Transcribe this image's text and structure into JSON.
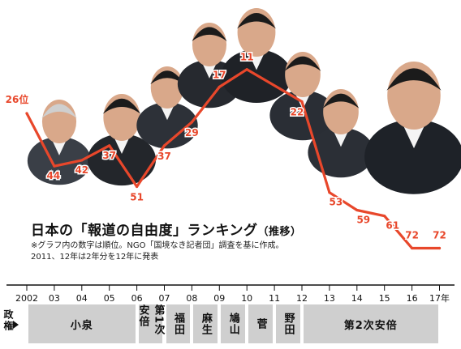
{
  "chart_data": {
    "type": "line",
    "title": "日本の「報道の自由度」ランキング",
    "subtitle": "（推移）",
    "notes": [
      "※グラフ内の数字は順位。NGO「国境なき記者団」調査を基に作成。",
      "2011、12年は2年分を12年に発表"
    ],
    "x": [
      "2002",
      "03",
      "04",
      "05",
      "06",
      "07",
      "08",
      "09",
      "10",
      "11",
      "12",
      "13",
      "14",
      "15",
      "16",
      "17年"
    ],
    "series": [
      {
        "points": [
          {
            "x": 2002,
            "y": 26
          },
          {
            "x": 2003,
            "y": 44
          },
          {
            "x": 2004,
            "y": 42
          },
          {
            "x": 2005,
            "y": 37
          },
          {
            "x": 2006,
            "y": 51
          },
          {
            "x": 2007,
            "y": 37
          },
          {
            "x": 2008,
            "y": 29
          },
          {
            "x": 2009,
            "y": 17
          },
          {
            "x": 2010,
            "y": 11
          },
          {
            "x": 2012,
            "y": 22
          },
          {
            "x": 2013,
            "y": 53
          },
          {
            "x": 2014,
            "y": 59
          },
          {
            "x": 2015,
            "y": 61
          },
          {
            "x": 2016,
            "y": 72
          },
          {
            "x": 2017,
            "y": 72
          }
        ]
      }
    ],
    "data_labels": [
      "26位",
      "44",
      "42",
      "37",
      "51",
      "37",
      "29",
      "17",
      "11",
      "22",
      "53",
      "59",
      "61",
      "72",
      "72"
    ],
    "y_inverted": true,
    "line_color": "#e8472b",
    "label_color": "#e8472b"
  },
  "government": {
    "row_label": "政権",
    "cabinets": [
      {
        "name": "小泉",
        "from": 2002,
        "to": 2006
      },
      {
        "name": "第1次安倍",
        "from": 2006,
        "to": 2007
      },
      {
        "name": "福田",
        "from": 2007,
        "to": 2008
      },
      {
        "name": "麻生",
        "from": 2008,
        "to": 2009
      },
      {
        "name": "鳩山",
        "from": 2009,
        "to": 2010
      },
      {
        "name": "菅",
        "from": 2010,
        "to": 2011
      },
      {
        "name": "野田",
        "from": 2011,
        "to": 2012
      },
      {
        "name": "第2次安倍",
        "from": 2012,
        "to": 2017
      }
    ]
  },
  "portraits": [
    {
      "name": "小泉",
      "icon": "portrait-koizumi-icon"
    },
    {
      "name": "安倍",
      "icon": "portrait-abe-1-icon"
    },
    {
      "name": "福田",
      "icon": "portrait-fukuda-icon"
    },
    {
      "name": "麻生",
      "icon": "portrait-aso-icon"
    },
    {
      "name": "鳩山",
      "icon": "portrait-hatoyama-icon"
    },
    {
      "name": "菅",
      "icon": "portrait-kan-icon"
    },
    {
      "name": "野田",
      "icon": "portrait-noda-icon"
    },
    {
      "name": "安倍",
      "icon": "portrait-abe-2-icon"
    }
  ]
}
